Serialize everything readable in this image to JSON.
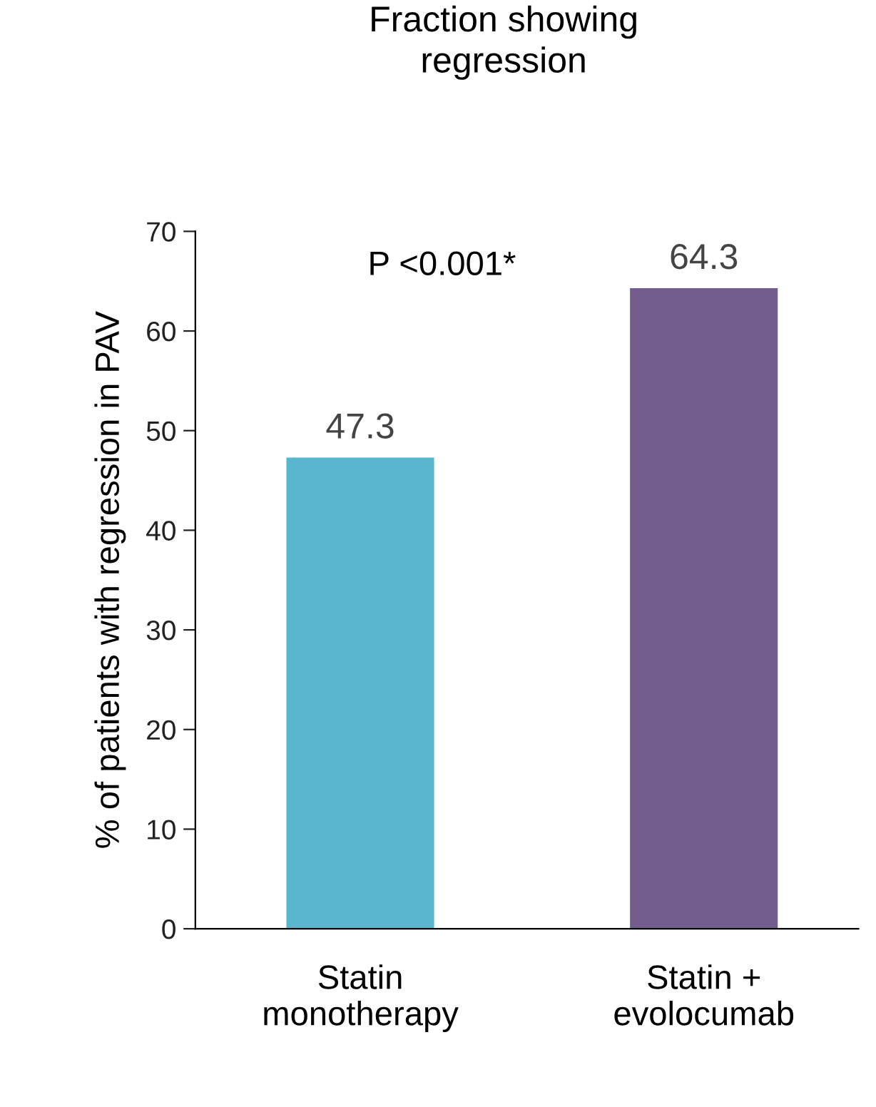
{
  "chart_data": {
    "type": "bar",
    "title": "Fraction showing\nregression",
    "ylabel": "% of patients with regression in PAV",
    "categories": [
      "Statin\nmonotherapy",
      "Statin +\nevolocumab"
    ],
    "values": [
      47.3,
      64.3
    ],
    "colors": [
      "#5ab6cf",
      "#735d8e"
    ],
    "ylim": [
      0,
      70
    ],
    "yticks": [
      0,
      10,
      20,
      30,
      40,
      50,
      60,
      70
    ],
    "data_labels": true,
    "grid": false,
    "legend": false,
    "annotations": [
      "P <0.001*"
    ]
  }
}
